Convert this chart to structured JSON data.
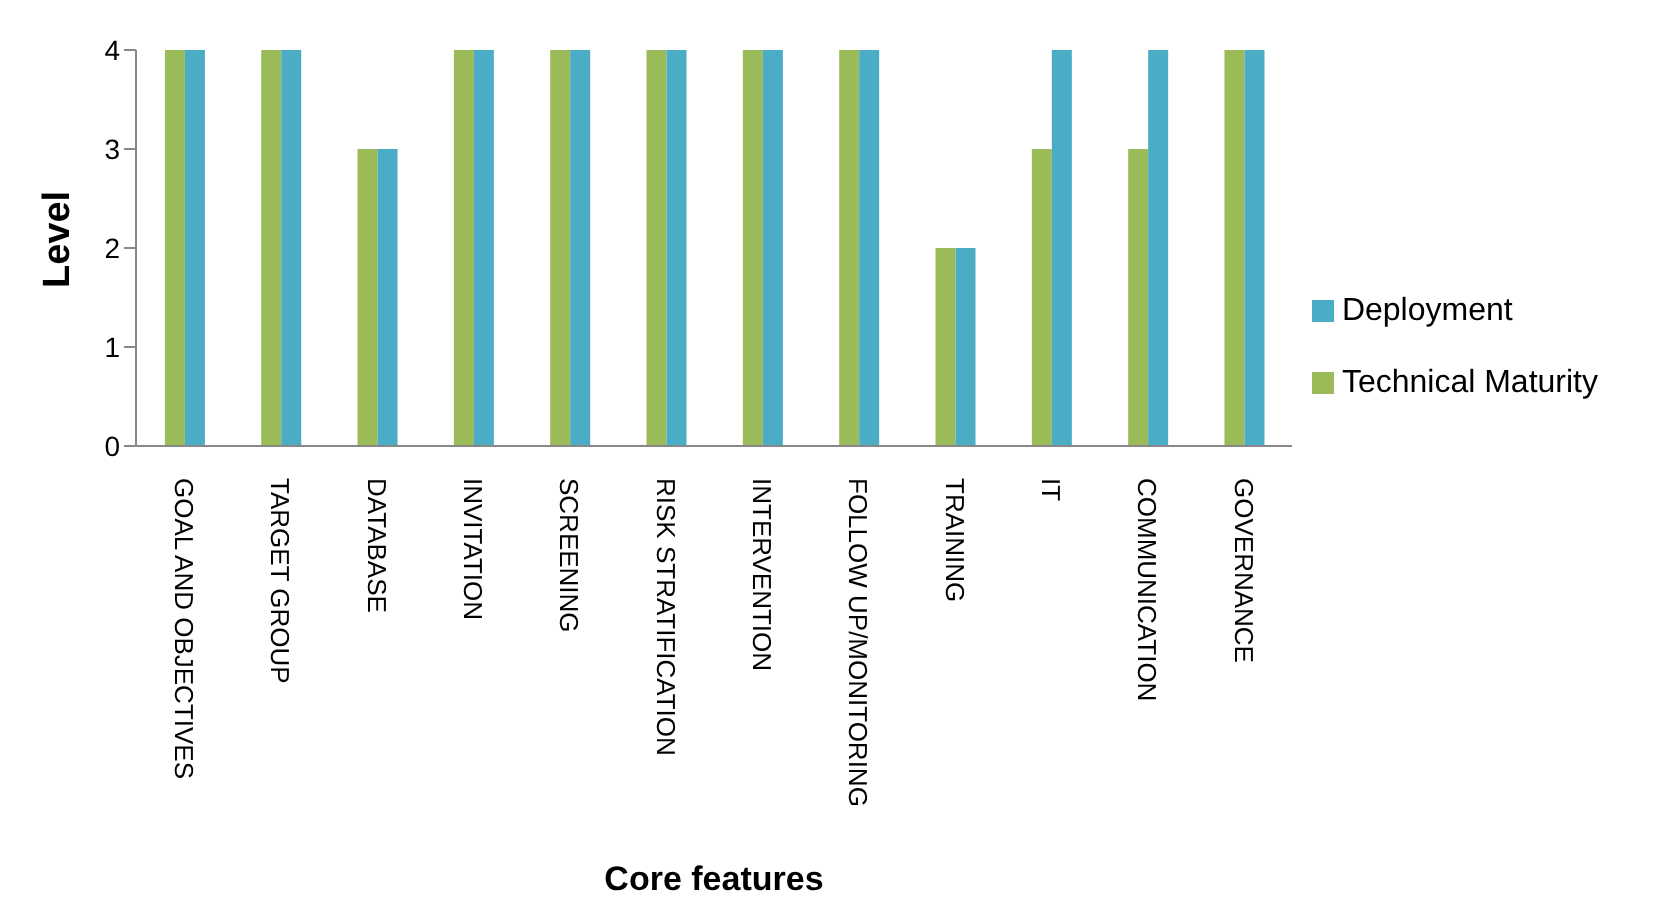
{
  "chart_data": {
    "type": "bar",
    "xlabel": "Core features",
    "ylabel": "Level",
    "categories": [
      "GOAL AND OBJECTIVES",
      "TARGET GROUP",
      "DATABASE",
      "INVITATION",
      "SCREENING",
      "RISK STRATIFICATION",
      "INTERVENTION",
      "FOLLOW UP/MONITORING",
      "TRAINING",
      "IT",
      "COMMUNICATION",
      "GOVERNANCE"
    ],
    "series": [
      {
        "name": "Technical Maturity",
        "color": "#9bbb59",
        "values": [
          4,
          4,
          3,
          4,
          4,
          4,
          4,
          4,
          2,
          3,
          3,
          4
        ]
      },
      {
        "name": "Deployment",
        "color": "#4bacc6",
        "values": [
          4,
          4,
          3,
          4,
          4,
          4,
          4,
          4,
          2,
          4,
          4,
          4
        ]
      }
    ],
    "ylim": [
      0,
      4
    ],
    "yticks": [
      0,
      1,
      2,
      3,
      4
    ],
    "legend": "right"
  }
}
